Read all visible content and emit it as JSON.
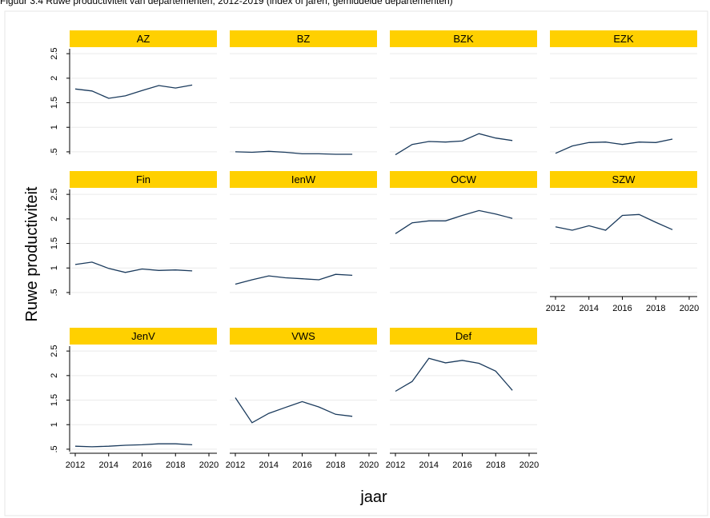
{
  "figure_caption": "Figuur 3.4 Ruwe productiviteit van departementen, 2012-2019 (index of jaren, gemiddelde departementen)",
  "chart_data": {
    "type": "line",
    "xlabel": "jaar",
    "ylabel": "Ruwe productiviteit",
    "xlim": [
      2012,
      2020
    ],
    "ylim": [
      0.45,
      2.6
    ],
    "xticks": [
      "2012",
      "2014",
      "2016",
      "2018",
      "2020"
    ],
    "yticks": [
      ".5",
      "1",
      "1.5",
      "2",
      "2.5"
    ],
    "grid": true,
    "strip_color": "#FFD000",
    "line_color": "#1a3a5c",
    "panels": [
      {
        "title": "AZ",
        "x": [
          2012,
          2013,
          2014,
          2015,
          2016,
          2017,
          2018,
          2019
        ],
        "y": [
          1.78,
          1.74,
          1.59,
          1.64,
          1.75,
          1.85,
          1.8,
          1.86
        ]
      },
      {
        "title": "BZ",
        "x": [
          2012,
          2013,
          2014,
          2015,
          2016,
          2017,
          2018,
          2019
        ],
        "y": [
          0.5,
          0.49,
          0.51,
          0.49,
          0.46,
          0.46,
          0.45,
          0.45
        ]
      },
      {
        "title": "BZK",
        "x": [
          2012,
          2013,
          2014,
          2015,
          2016,
          2017,
          2018,
          2019
        ],
        "y": [
          0.44,
          0.65,
          0.71,
          0.7,
          0.72,
          0.87,
          0.78,
          0.73
        ]
      },
      {
        "title": "EZK",
        "x": [
          2012,
          2013,
          2014,
          2015,
          2016,
          2017,
          2018,
          2019
        ],
        "y": [
          0.47,
          0.62,
          0.69,
          0.7,
          0.65,
          0.7,
          0.69,
          0.76
        ]
      },
      {
        "title": "Fin",
        "x": [
          2012,
          2013,
          2014,
          2015,
          2016,
          2017,
          2018,
          2019
        ],
        "y": [
          1.07,
          1.12,
          0.99,
          0.91,
          0.98,
          0.95,
          0.96,
          0.94
        ]
      },
      {
        "title": "IenW",
        "x": [
          2012,
          2013,
          2014,
          2015,
          2016,
          2017,
          2018,
          2019
        ],
        "y": [
          0.67,
          0.76,
          0.84,
          0.8,
          0.78,
          0.76,
          0.87,
          0.85
        ]
      },
      {
        "title": "OCW",
        "x": [
          2012,
          2013,
          2014,
          2015,
          2016,
          2017,
          2018,
          2019
        ],
        "y": [
          1.7,
          1.92,
          1.96,
          1.96,
          2.07,
          2.17,
          2.1,
          2.01
        ]
      },
      {
        "title": "SZW",
        "x": [
          2012,
          2013,
          2014,
          2015,
          2016,
          2017,
          2018,
          2019
        ],
        "y": [
          1.84,
          1.77,
          1.86,
          1.77,
          2.07,
          2.09,
          1.93,
          1.78
        ]
      },
      {
        "title": "JenV",
        "x": [
          2012,
          2013,
          2014,
          2015,
          2016,
          2017,
          2018,
          2019
        ],
        "y": [
          0.56,
          0.55,
          0.56,
          0.58,
          0.59,
          0.61,
          0.61,
          0.59
        ]
      },
      {
        "title": "VWS",
        "x": [
          2012,
          2013,
          2014,
          2015,
          2016,
          2017,
          2018,
          2019
        ],
        "y": [
          1.55,
          1.04,
          1.23,
          1.35,
          1.47,
          1.36,
          1.21,
          1.17
        ]
      },
      {
        "title": "Def",
        "x": [
          2012,
          2013,
          2014,
          2015,
          2016,
          2017,
          2018,
          2019
        ],
        "y": [
          1.68,
          1.88,
          2.35,
          2.26,
          2.31,
          2.25,
          2.09,
          1.7
        ]
      }
    ]
  }
}
